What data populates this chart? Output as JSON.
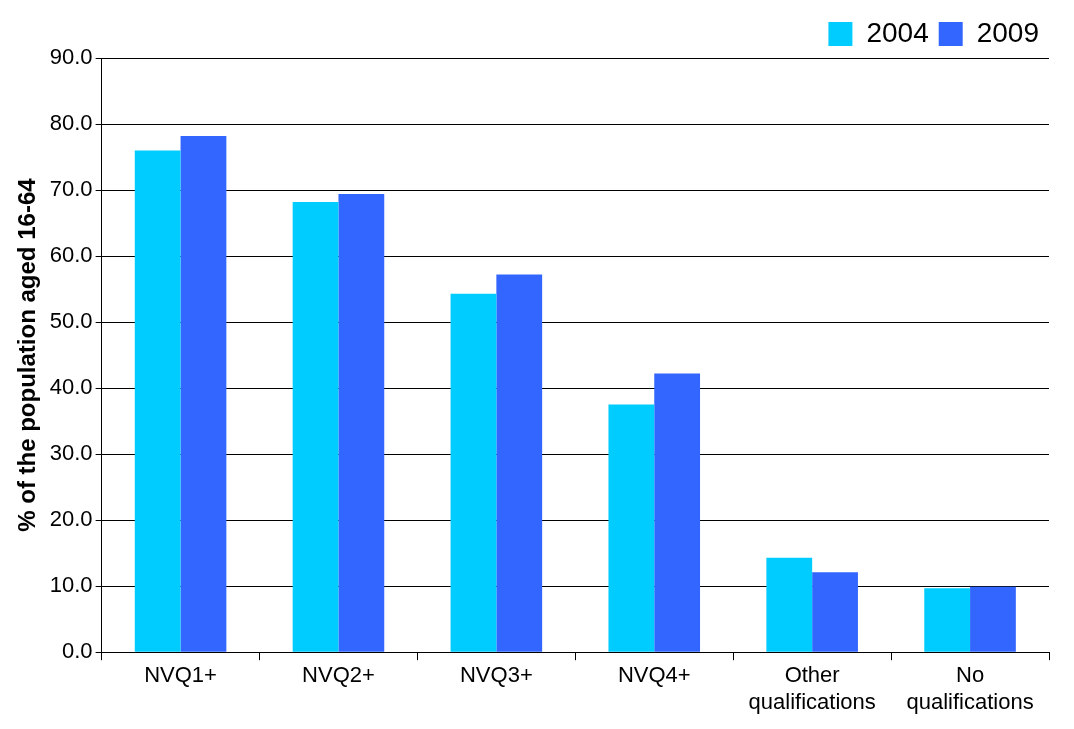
{
  "chart_data": {
    "type": "bar",
    "ylabel": "% of the population aged 16-64",
    "categories": [
      "NVQ1+",
      "NVQ2+",
      "NVQ3+",
      "NVQ4+",
      "Other qualifications",
      "No qualifications"
    ],
    "series": [
      {
        "name": "2004",
        "color": "#00ccff",
        "values": [
          76.0,
          68.2,
          54.3,
          37.5,
          14.3,
          9.7
        ]
      },
      {
        "name": "2009",
        "color": "#3366ff",
        "values": [
          78.2,
          69.4,
          57.2,
          42.2,
          12.1,
          9.9
        ]
      }
    ],
    "ylim": [
      0,
      90
    ],
    "yticks": [
      {
        "value": 0,
        "label": "0.0"
      },
      {
        "value": 10,
        "label": "10.0"
      },
      {
        "value": 20,
        "label": "20.0"
      },
      {
        "value": 30,
        "label": "30.0"
      },
      {
        "value": 40,
        "label": "40.0"
      },
      {
        "value": 50,
        "label": "50.0"
      },
      {
        "value": 60,
        "label": "60.0"
      },
      {
        "value": 70,
        "label": "70.0"
      },
      {
        "value": 80,
        "label": "80.0"
      },
      {
        "value": 90,
        "label": "90.0"
      }
    ],
    "grid": "y",
    "legend": "top right"
  }
}
